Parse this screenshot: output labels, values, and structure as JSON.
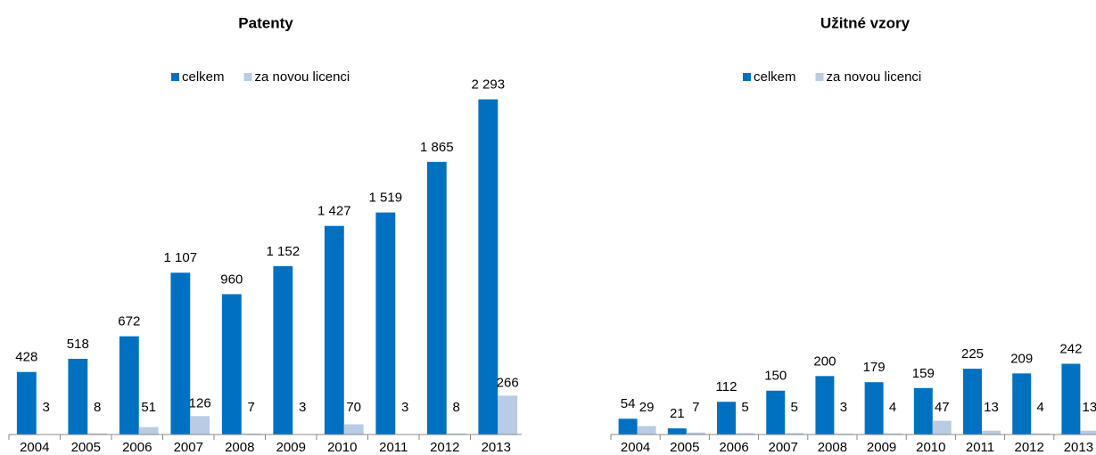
{
  "chart_data": [
    {
      "type": "bar",
      "title": "Patenty",
      "categories": [
        "2004",
        "2005",
        "2006",
        "2007",
        "2008",
        "2009",
        "2010",
        "2011",
        "2012",
        "2013"
      ],
      "series": [
        {
          "name": "celkem",
          "color": "#0070c0",
          "values": [
            428,
            518,
            672,
            1107,
            960,
            1152,
            1427,
            1519,
            1865,
            2293
          ],
          "value_labels": [
            "428",
            "518",
            "672",
            "1 107",
            "960",
            "1 152",
            "1 427",
            "1 519",
            "1 865",
            "2 293"
          ]
        },
        {
          "name": "za novou licenci",
          "color": "#b8cce4",
          "values": [
            3,
            8,
            51,
            126,
            7,
            3,
            70,
            3,
            8,
            266
          ]
        }
      ],
      "ylim": [
        0,
        2400
      ]
    },
    {
      "type": "bar",
      "title": "Užitné vzory",
      "categories": [
        "2004",
        "2005",
        "2006",
        "2007",
        "2008",
        "2009",
        "2010",
        "2011",
        "2012",
        "2013"
      ],
      "series": [
        {
          "name": "celkem",
          "color": "#0070c0",
          "values": [
            54,
            21,
            112,
            150,
            200,
            179,
            159,
            225,
            209,
            242
          ]
        },
        {
          "name": "za novou licenci",
          "color": "#b8cce4",
          "values": [
            29,
            7,
            5,
            5,
            3,
            4,
            47,
            13,
            4,
            13
          ]
        }
      ],
      "ylim": [
        0,
        1200
      ]
    }
  ]
}
